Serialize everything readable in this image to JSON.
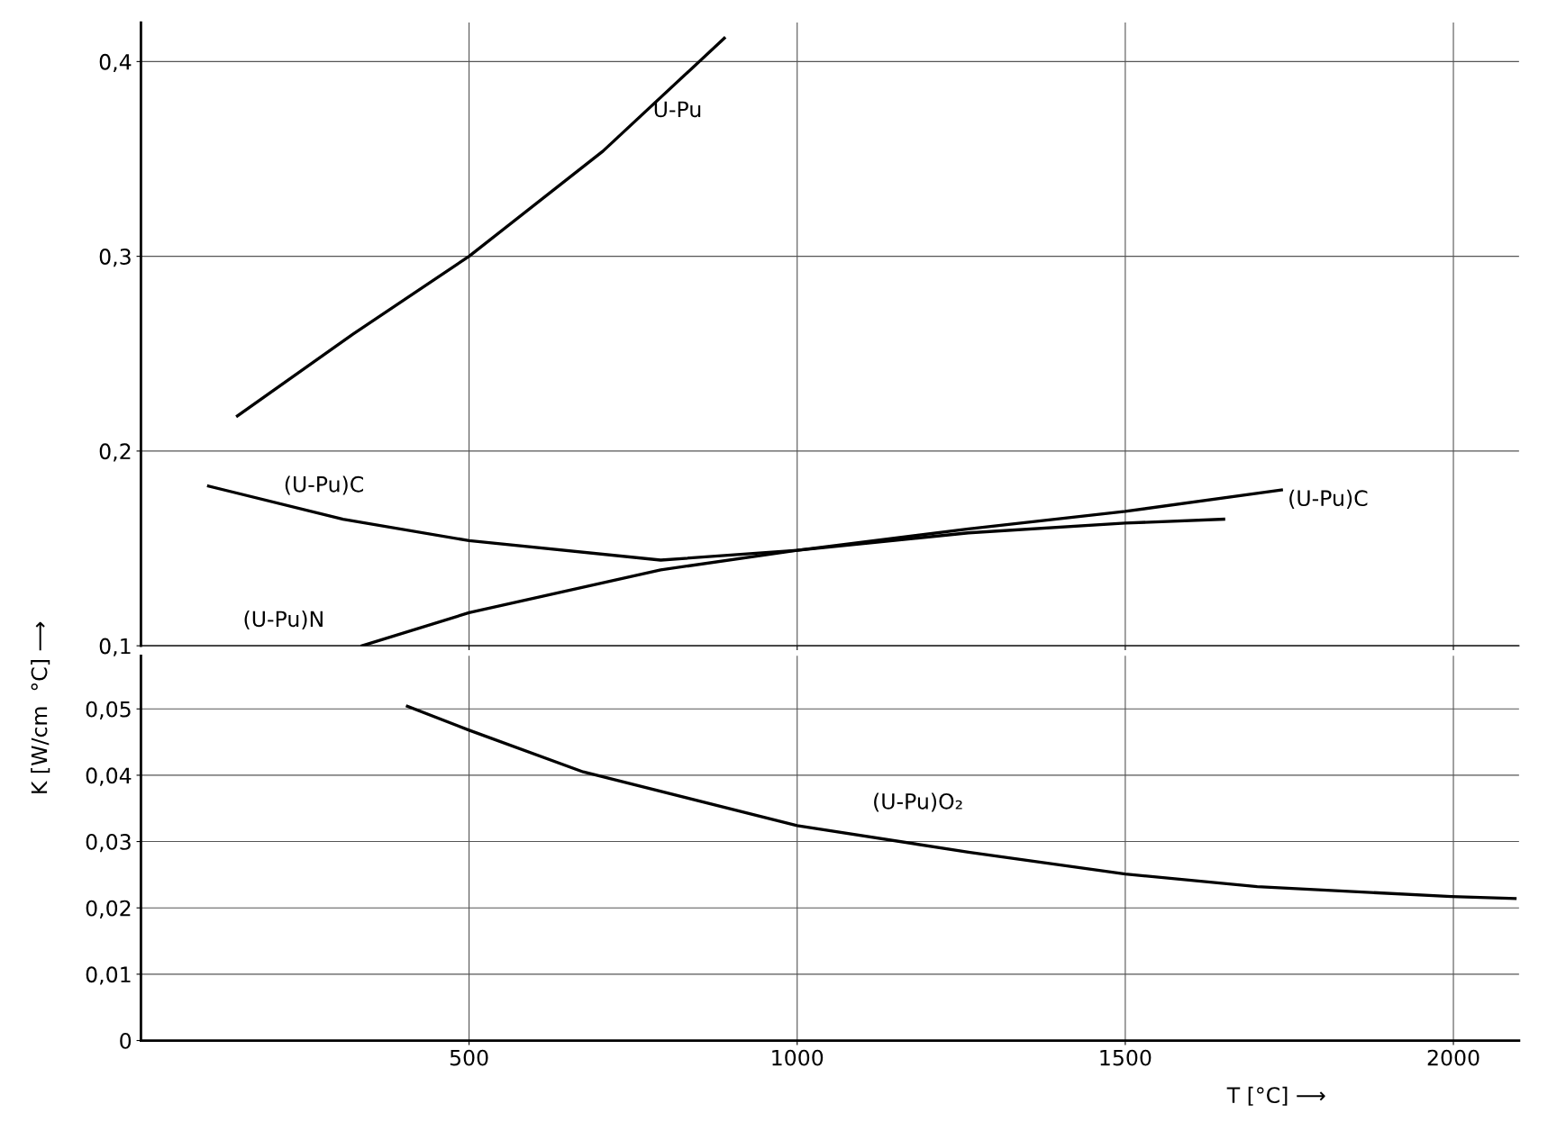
{
  "chart_data": [
    {
      "type": "line",
      "ylabel": "K [W/cm  °C] ⟶",
      "xlim": [
        0,
        2100
      ],
      "xticks": [
        500,
        1000,
        1500,
        2000
      ],
      "ylim": [
        0.1,
        0.42
      ],
      "yticks": [
        {
          "value": 0.1,
          "label": "0,1"
        },
        {
          "value": 0.2,
          "label": "0,2"
        },
        {
          "value": 0.3,
          "label": "0,3"
        },
        {
          "value": 0.4,
          "label": "0,4"
        }
      ],
      "grid": true,
      "tick_labels": "y",
      "line_style": "solid",
      "marker": "none",
      "series": [
        {
          "name": "U-Pu",
          "color": "#000000",
          "x": [
            147,
            323,
            500,
            704,
            889
          ],
          "values": [
            0.218,
            0.26,
            0.3,
            0.354,
            0.412
          ]
        },
        {
          "name": "(U-Pu)C",
          "color": "#000000",
          "x": [
            103,
            308,
            500,
            792,
            1000,
            1261,
            1500,
            1738
          ],
          "values": [
            0.182,
            0.165,
            0.154,
            0.144,
            0.149,
            0.16,
            0.169,
            0.18
          ]
        },
        {
          "name": "(U-Pu)N",
          "color": "#000000",
          "x": [
            337,
            500,
            792,
            1000,
            1261,
            1500,
            1650
          ],
          "values": [
            0.1,
            0.117,
            0.139,
            0.149,
            0.158,
            0.163,
            0.165
          ]
        }
      ]
    },
    {
      "type": "line",
      "xlabel": "T [°C] ⟶",
      "xlim": [
        0,
        2100
      ],
      "xticks": [
        500,
        1000,
        1500,
        2000
      ],
      "ylim": [
        0,
        0.058
      ],
      "yticks": [
        {
          "value": 0,
          "label": "0"
        },
        {
          "value": 0.01,
          "label": "0,01"
        },
        {
          "value": 0.02,
          "label": "0,02"
        },
        {
          "value": 0.03,
          "label": "0,03"
        },
        {
          "value": 0.04,
          "label": "0,04"
        },
        {
          "value": 0.05,
          "label": "0,05"
        }
      ],
      "grid": true,
      "line_style": "solid",
      "marker": "none",
      "series": [
        {
          "name": "(U-Pu)O₂",
          "color": "#000000",
          "x": [
            406,
            500,
            674,
            1000,
            1261,
            1500,
            1701,
            1997,
            2094
          ],
          "values": [
            0.0504,
            0.0468,
            0.0405,
            0.0324,
            0.0284,
            0.0251,
            0.0232,
            0.0217,
            0.0214
          ]
        }
      ]
    }
  ]
}
